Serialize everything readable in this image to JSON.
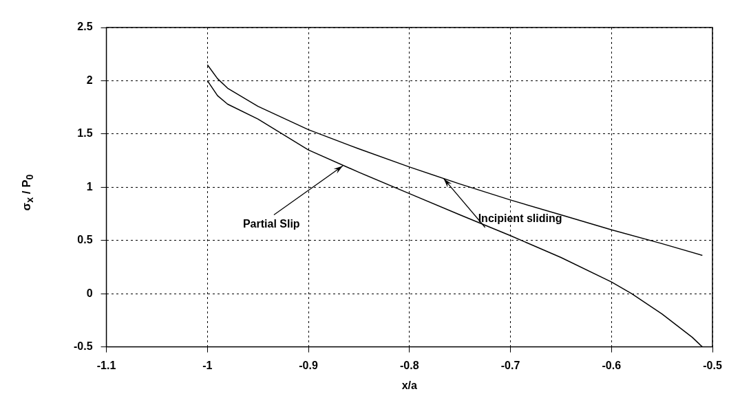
{
  "chart_data": {
    "type": "line",
    "xlabel": "x/a",
    "ylabel": "σ$_{x}$ / P$_{0}$",
    "xlim": [
      -1.1,
      -0.5
    ],
    "xticks": [
      -1.1,
      -1,
      -0.9,
      -0.8,
      -0.7,
      -0.6,
      -0.5
    ],
    "ylim": [
      -0.5,
      2.5
    ],
    "yticks": [
      -0.5,
      0,
      0.5,
      1,
      1.5,
      2,
      2.5
    ],
    "grid": true,
    "legend": false,
    "marker": "none",
    "line_style": "solid",
    "series": [
      {
        "color": "#000000",
        "x": [
          -1,
          -0.99,
          -0.98,
          -0.95,
          -0.9,
          -0.85,
          -0.8,
          -0.75,
          -0.7,
          -0.65,
          -0.6,
          -0.55,
          -0.51
        ],
        "values": [
          2.15,
          2.02,
          1.93,
          1.76,
          1.54,
          1.36,
          1.19,
          1.03,
          0.88,
          0.74,
          0.6,
          0.47,
          0.36
        ]
      },
      {
        "color": "#000000",
        "x": [
          -1,
          -0.99,
          -0.98,
          -0.95,
          -0.9,
          -0.85,
          -0.8,
          -0.75,
          -0.7,
          -0.65,
          -0.6,
          -0.58,
          -0.55,
          -0.52,
          -0.51
        ],
        "values": [
          2.0,
          1.86,
          1.78,
          1.64,
          1.35,
          1.14,
          0.94,
          0.74,
          0.545,
          0.34,
          0.11,
          0.0,
          -0.19,
          -0.41,
          -0.5
        ]
      }
    ],
    "annotations": [
      {
        "text": "Incipient sliding",
        "x": -0.766,
        "y": 1.08
      },
      {
        "text": "Partial Slip",
        "x": -0.866,
        "y": 1.2
      }
    ]
  }
}
